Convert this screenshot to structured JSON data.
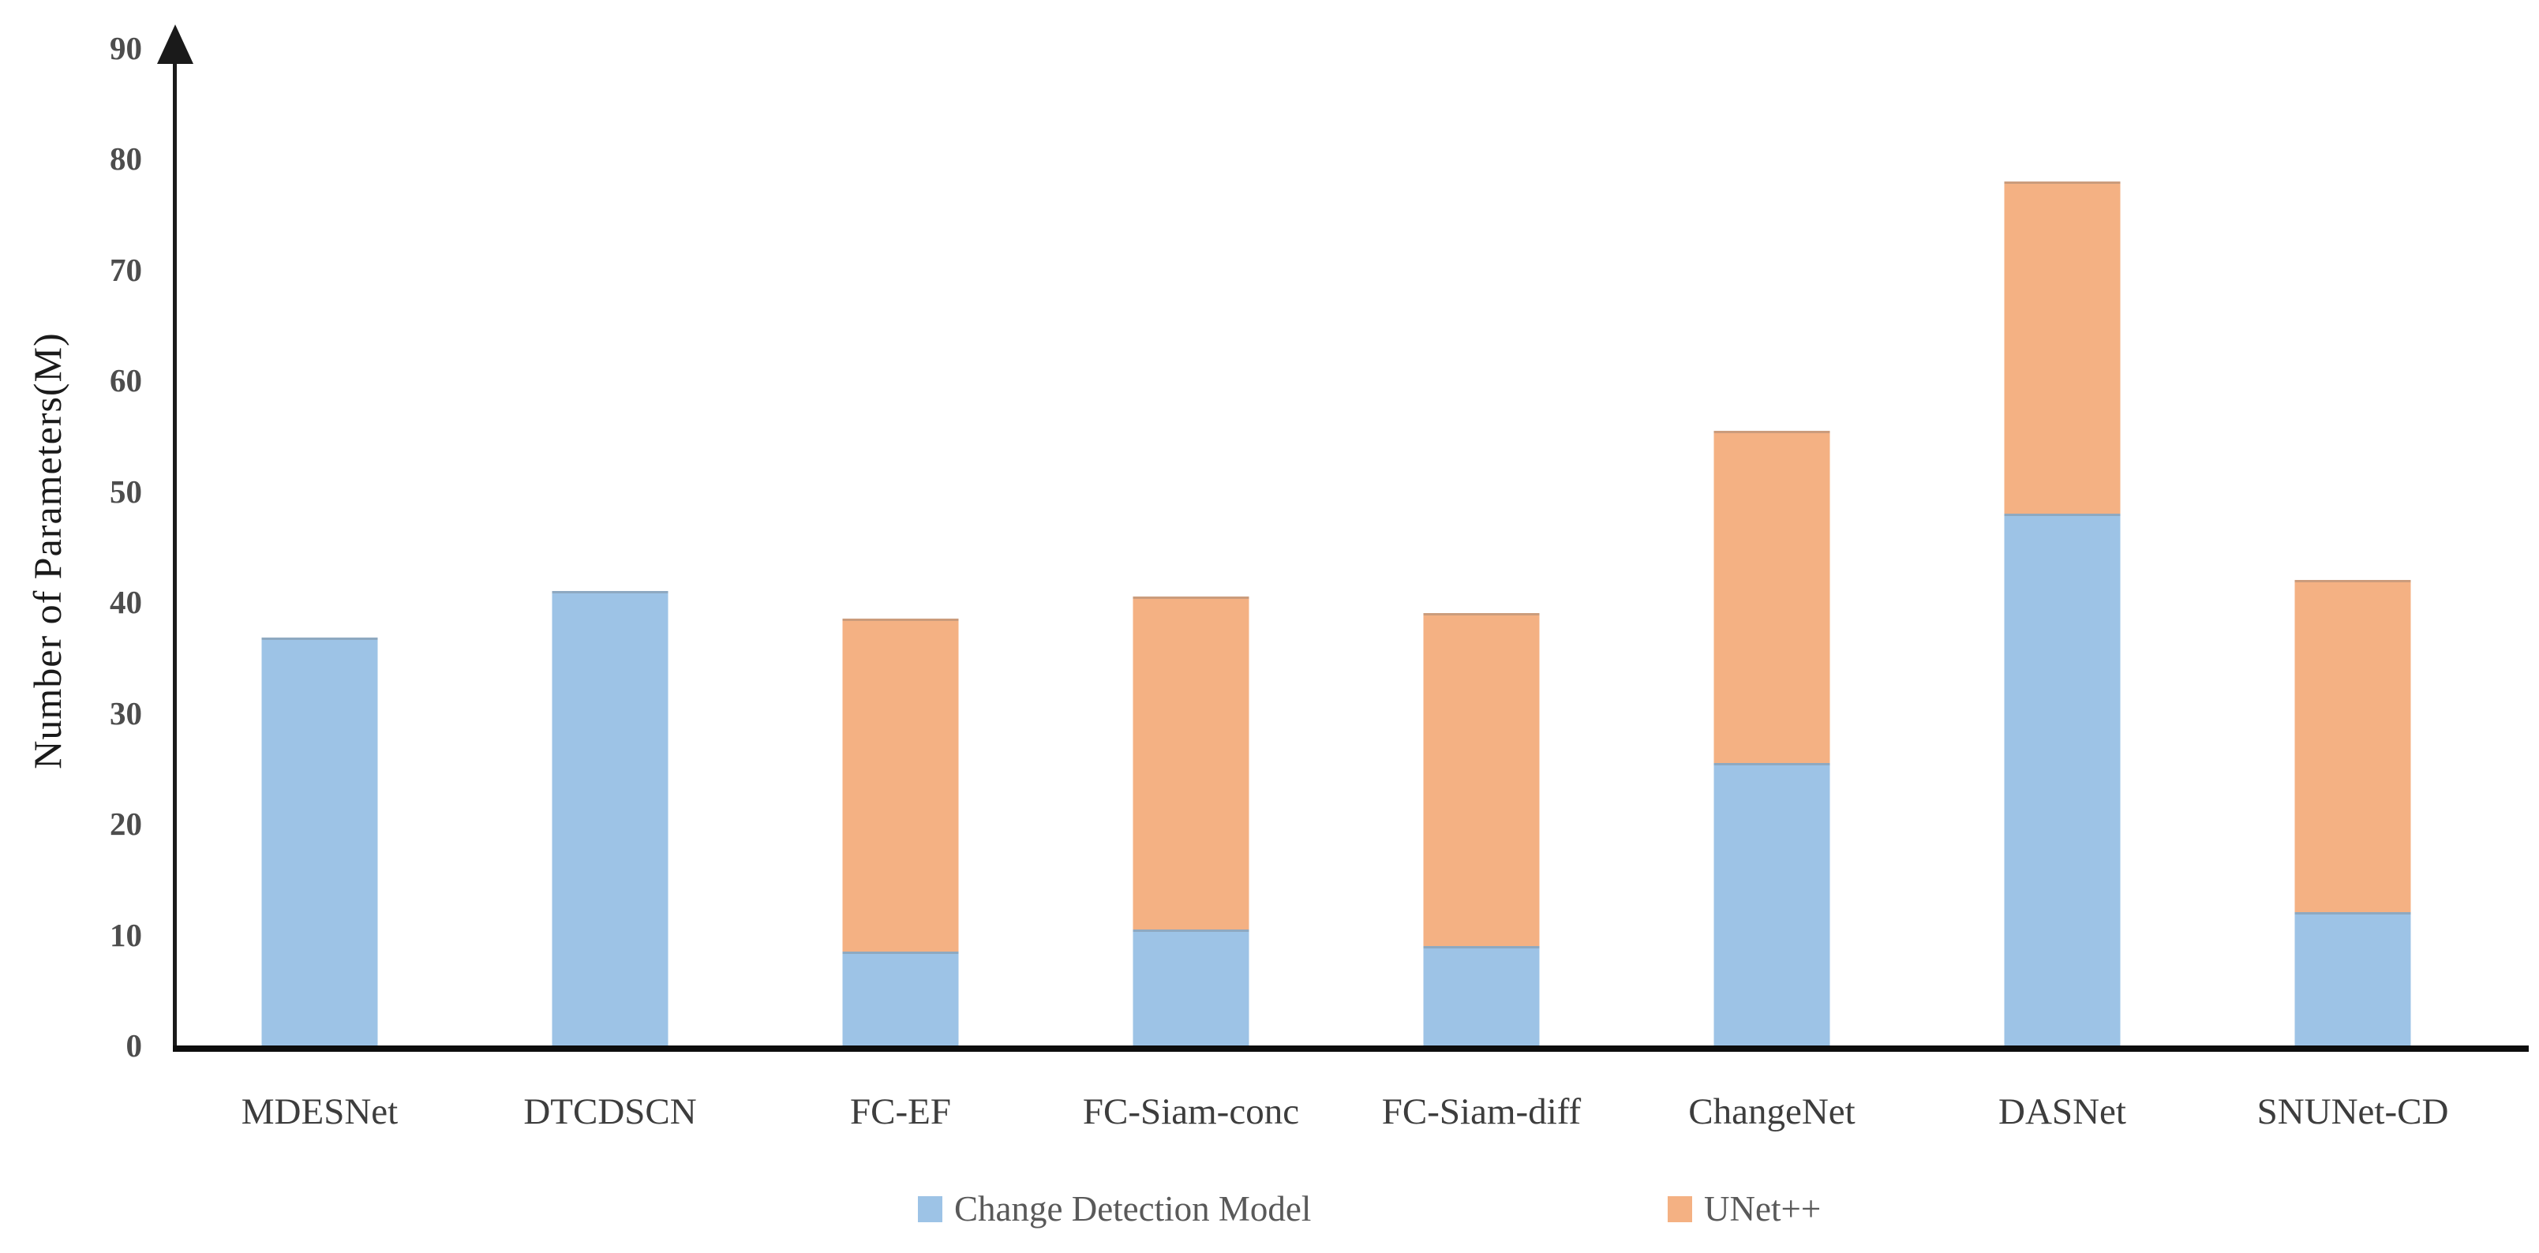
{
  "chart_data": {
    "type": "bar",
    "stacked": true,
    "title": "",
    "xlabel": "",
    "ylabel": "Number of Parameters(M)",
    "ylim": [
      0,
      90
    ],
    "yticks": [
      0,
      10,
      20,
      30,
      40,
      50,
      60,
      70,
      80,
      90
    ],
    "grid": false,
    "legend_position": "bottom",
    "categories": [
      "MDESNet",
      "DTCDSCN",
      "FC-EF",
      "FC-Siam-conc",
      "FC-Siam-diff",
      "ChangeNet",
      "DASNet",
      "SNUNet-CD"
    ],
    "series": [
      {
        "name": "Change Detection Model",
        "color": "#9DC3E6",
        "values": [
          36.8,
          41,
          8.5,
          10.5,
          9,
          25.5,
          48,
          12
        ]
      },
      {
        "name": "UNet++",
        "color": "#F4B183",
        "values": [
          0,
          0,
          30,
          30,
          30,
          30,
          30,
          30
        ]
      }
    ],
    "totals": [
      36.8,
      41,
      38.5,
      40.5,
      39,
      55.5,
      78,
      42
    ]
  },
  "colors": {
    "axis": "#1a1a1a",
    "tick_label": "#4d4d4d",
    "category_label": "#3d3d3d",
    "legend_label": "#595959",
    "background": "#ffffff"
  }
}
